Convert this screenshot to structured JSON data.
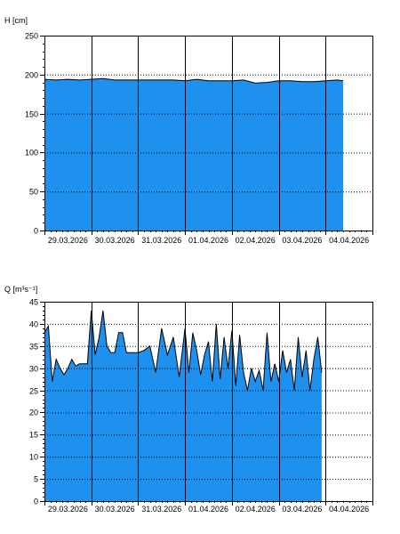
{
  "chart_data": [
    {
      "type": "area",
      "ylabel": "H [cm]",
      "ylim": [
        0,
        250
      ],
      "yticks": [
        0,
        50,
        100,
        150,
        200,
        250
      ],
      "xlim": [
        "2026-03-29T00:00",
        "2026-04-05T00:00"
      ],
      "date_labels": [
        "29.03.2026",
        "30.03.2026",
        "31.03.2026",
        "01.04.2026",
        "02.04.2026",
        "03.04.2026",
        "04.04.2026"
      ],
      "grid": true,
      "fill_color": "#1e90ee",
      "series": [
        {
          "x": [
            "2026-03-29T00:00",
            "2026-03-29T06:00",
            "2026-03-29T12:00",
            "2026-03-29T18:00",
            "2026-03-30T00:00",
            "2026-03-30T06:00",
            "2026-03-30T12:00",
            "2026-03-30T18:00",
            "2026-03-31T00:00",
            "2026-03-31T06:00",
            "2026-03-31T12:00",
            "2026-03-31T18:00",
            "2026-04-01T00:00",
            "2026-04-01T06:00",
            "2026-04-01T12:00",
            "2026-04-01T18:00",
            "2026-04-02T00:00",
            "2026-04-02T06:00",
            "2026-04-02T12:00",
            "2026-04-02T18:00",
            "2026-04-03T00:00",
            "2026-04-03T06:00",
            "2026-04-03T12:00",
            "2026-04-03T18:00",
            "2026-04-04T00:00",
            "2026-04-04T06:00",
            "2026-04-04T09:00"
          ],
          "y": [
            194,
            193,
            194,
            193,
            194,
            195,
            193,
            193,
            193,
            193,
            193,
            193,
            192,
            194,
            192,
            192,
            192,
            193,
            189,
            190,
            192,
            192,
            191,
            191,
            192,
            193,
            192
          ]
        }
      ]
    },
    {
      "type": "area",
      "ylabel": "Q [m³s⁻¹]",
      "ylim": [
        0,
        45
      ],
      "yticks": [
        0,
        5,
        10,
        15,
        20,
        25,
        30,
        35,
        40,
        45
      ],
      "xlim": [
        "2026-03-29T00:00",
        "2026-04-05T00:00"
      ],
      "date_labels": [
        "29.03.2026",
        "30.03.2026",
        "31.03.2026",
        "01.04.2026",
        "02.04.2026",
        "03.04.2026",
        "04.04.2026"
      ],
      "grid": true,
      "fill_color": "#1e90ee",
      "series": [
        {
          "x": [
            "2026-03-29T00:00",
            "2026-03-29T02:00",
            "2026-03-29T04:00",
            "2026-03-29T06:00",
            "2026-03-29T08:00",
            "2026-03-29T10:00",
            "2026-03-29T12:00",
            "2026-03-29T14:00",
            "2026-03-29T16:00",
            "2026-03-29T18:00",
            "2026-03-29T20:00",
            "2026-03-29T22:00",
            "2026-03-30T00:00",
            "2026-03-30T02:00",
            "2026-03-30T04:00",
            "2026-03-30T06:00",
            "2026-03-30T08:00",
            "2026-03-30T10:00",
            "2026-03-30T12:00",
            "2026-03-30T14:00",
            "2026-03-30T16:00",
            "2026-03-30T18:00",
            "2026-03-30T20:00",
            "2026-03-30T22:00",
            "2026-03-31T00:00",
            "2026-03-31T03:00",
            "2026-03-31T06:00",
            "2026-03-31T09:00",
            "2026-03-31T12:00",
            "2026-03-31T15:00",
            "2026-03-31T18:00",
            "2026-03-31T21:00",
            "2026-04-01T00:00",
            "2026-04-01T02:00",
            "2026-04-01T04:00",
            "2026-04-01T06:00",
            "2026-04-01T08:00",
            "2026-04-01T10:00",
            "2026-04-01T12:00",
            "2026-04-01T14:00",
            "2026-04-01T16:00",
            "2026-04-01T18:00",
            "2026-04-01T20:00",
            "2026-04-01T22:00",
            "2026-04-02T00:00",
            "2026-04-02T02:00",
            "2026-04-02T04:00",
            "2026-04-02T06:00",
            "2026-04-02T08:00",
            "2026-04-02T10:00",
            "2026-04-02T12:00",
            "2026-04-02T14:00",
            "2026-04-02T16:00",
            "2026-04-02T18:00",
            "2026-04-02T20:00",
            "2026-04-02T22:00",
            "2026-04-03T00:00",
            "2026-04-03T02:00",
            "2026-04-03T04:00",
            "2026-04-03T06:00",
            "2026-04-03T08:00",
            "2026-04-03T10:00",
            "2026-04-03T12:00",
            "2026-04-03T14:00",
            "2026-04-03T16:00",
            "2026-04-03T18:00",
            "2026-04-03T20:00",
            "2026-04-03T22:00"
          ],
          "y": [
            38,
            39.5,
            27,
            32,
            30,
            28.5,
            30,
            32,
            30.5,
            31,
            31,
            31,
            43,
            33,
            37,
            43,
            35,
            33.5,
            33.5,
            38,
            38,
            33.5,
            33.5,
            33.5,
            33.5,
            34,
            35,
            29,
            39,
            33,
            37,
            28,
            39,
            29,
            38,
            34,
            28.5,
            33,
            36,
            27,
            40,
            27.5,
            37,
            30,
            38.5,
            26,
            37.5,
            29,
            25,
            30,
            27,
            29.5,
            25,
            38,
            27,
            31,
            27,
            34,
            29,
            32,
            25,
            37,
            28,
            34,
            25,
            32,
            37,
            29
          ]
        }
      ]
    }
  ]
}
